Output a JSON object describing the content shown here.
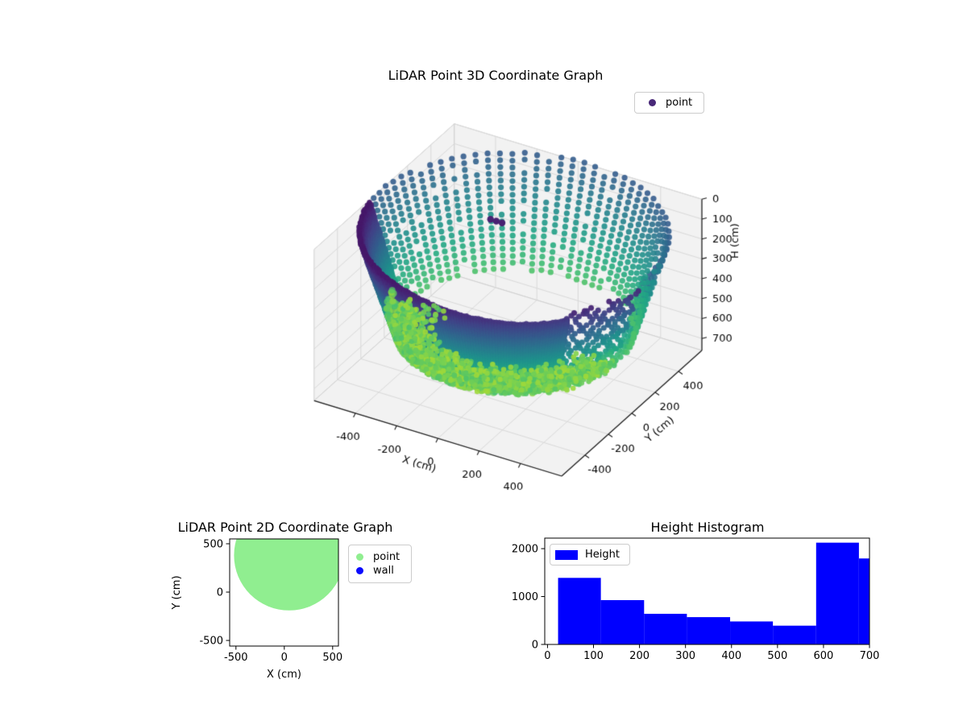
{
  "figure": {
    "background": "#ffffff"
  },
  "chart_data": [
    {
      "type": "scatter3d",
      "title": "LiDAR Point 3D Coordinate Graph",
      "xlabel": "X (cm)",
      "ylabel": "Y (cm)",
      "zlabel": "H (cm)",
      "legend": [
        {
          "label": "point",
          "color": "#482878"
        }
      ],
      "xticks": [
        -400,
        -200,
        0,
        200,
        400
      ],
      "yticks": [
        -400,
        -200,
        0,
        200,
        400
      ],
      "zticks": [
        0,
        100,
        200,
        300,
        400,
        500,
        600,
        700
      ],
      "xlim": [
        -600,
        600
      ],
      "ylim": [
        -600,
        600
      ],
      "zlim": [
        0,
        760
      ],
      "zaxis_inverted": true,
      "colormap": "viridis",
      "pane_color": "#f2f2f2",
      "grid_color": "#d9d9d9",
      "point_cloud": {
        "shape": "cylinder-wall",
        "center_x": 30,
        "center_y": 0,
        "radius_cm": 600,
        "h_min": 20,
        "h_max": 740,
        "dense_arc_deg": [
          188,
          321
        ],
        "front_sparse_arc_deg": [
          321,
          356
        ],
        "back_sparse_arc_deg": [
          -4,
          185
        ],
        "sparse_column_step_deg": 4.6,
        "floor_ring": {
          "h_min": 665,
          "h_max": 740
        },
        "anomaly_cluster": {
          "x": -130,
          "y": 80,
          "h": 60,
          "points": 3
        }
      }
    },
    {
      "type": "scatter",
      "title": "LiDAR Point 2D Coordinate Graph",
      "xlabel": "X (cm)",
      "ylabel": "Y (cm)",
      "xticks": [
        -500,
        0,
        500
      ],
      "yticks": [
        -500,
        0,
        500
      ],
      "xlim": [
        -565,
        560
      ],
      "ylim": [
        -558,
        550
      ],
      "legend": [
        {
          "label": "point",
          "color": "#90ee90"
        },
        {
          "label": "wall",
          "color": "#0a0aff"
        }
      ],
      "point_region": {
        "shape": "disc",
        "cx": 50,
        "cy": 380,
        "r": 570,
        "color": "#90ee90"
      }
    },
    {
      "type": "histogram",
      "title": "Height Histogram",
      "legend": [
        {
          "label": "Height",
          "color": "#0000ff"
        }
      ],
      "bar_color": "#0000ff",
      "bin_edges": [
        23,
        116,
        210,
        303,
        397,
        490,
        584,
        677,
        771
      ],
      "counts": [
        1390,
        925,
        640,
        570,
        480,
        392,
        2125,
        1795
      ],
      "xticks": [
        0,
        100,
        200,
        300,
        400,
        500,
        600,
        700
      ],
      "yticks": [
        0,
        1000,
        2000
      ],
      "xlim": [
        -6,
        700
      ],
      "ylim": [
        0,
        2220
      ]
    }
  ]
}
